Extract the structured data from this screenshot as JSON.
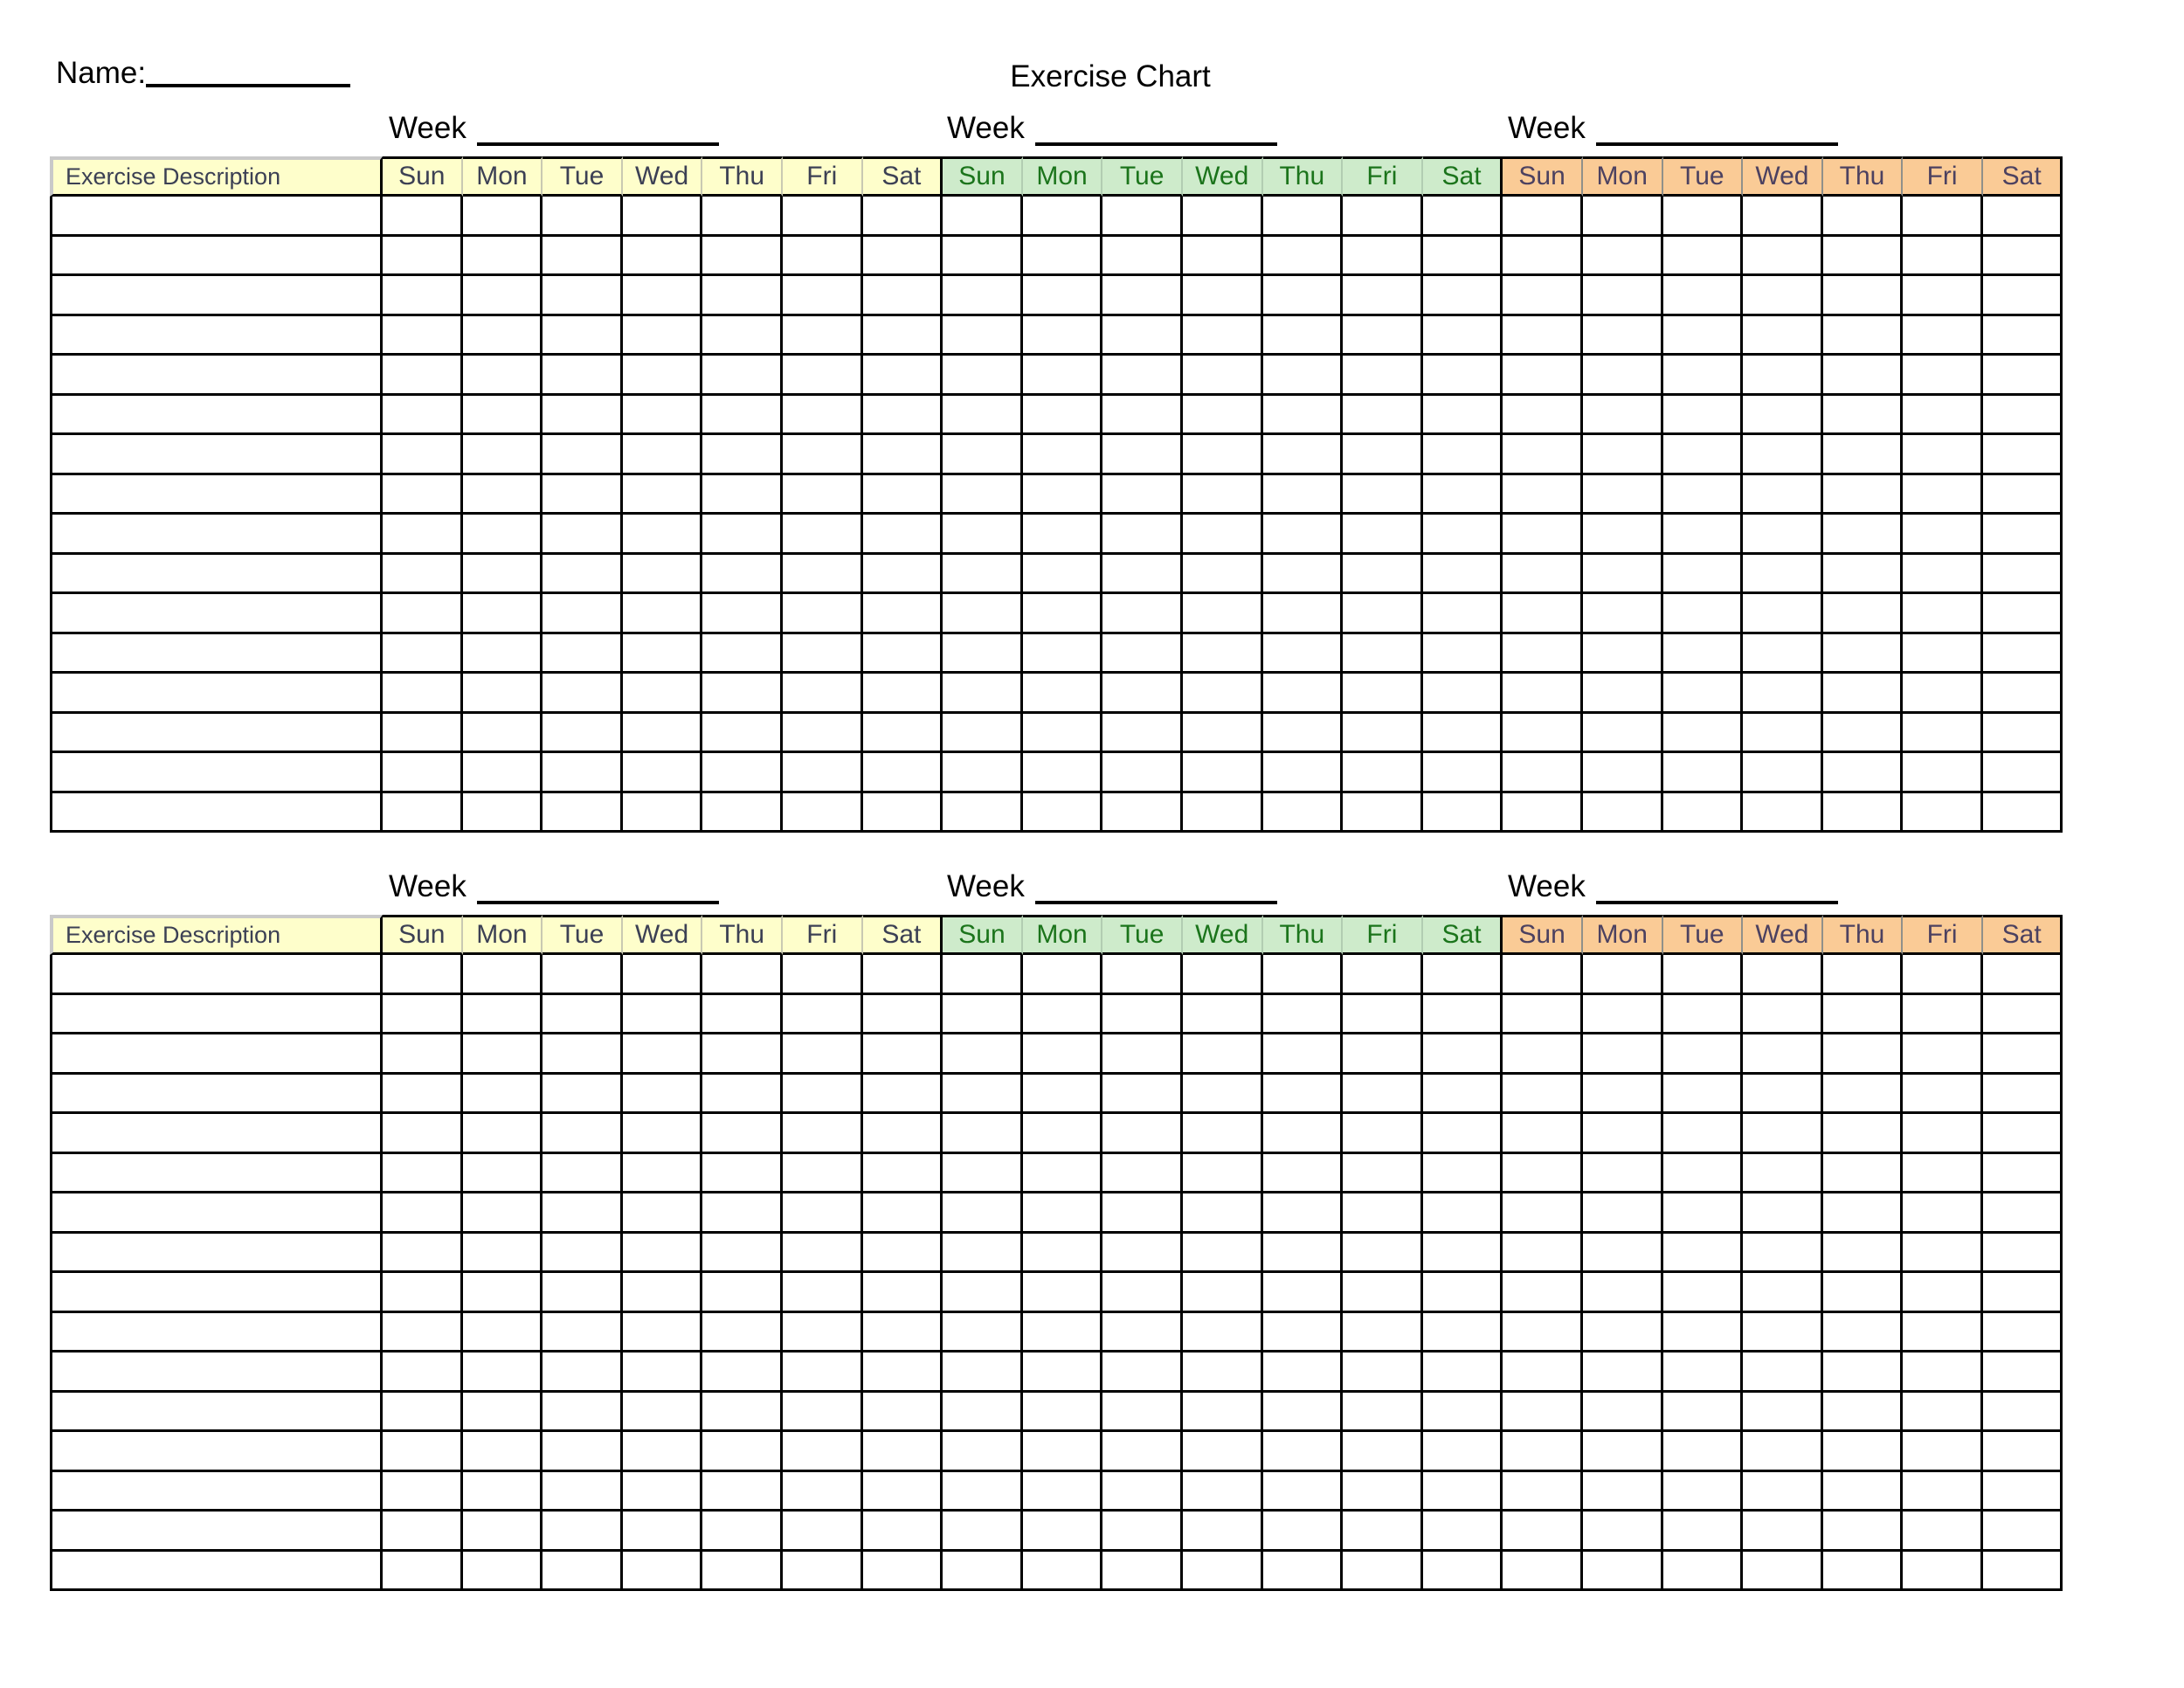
{
  "header": {
    "name_label": "Name:",
    "name_value": "",
    "title": "Exercise Chart"
  },
  "table_template": {
    "description_header": "Exercise Description",
    "description_header_bg": "#FEFECB",
    "description_header_text": "#3C4054",
    "week_label": "Week",
    "days": [
      "Sun",
      "Mon",
      "Tue",
      "Wed",
      "Thu",
      "Fri",
      "Sat"
    ],
    "rows_per_table": 16,
    "sections": [
      {
        "id": "week-1",
        "bg": "#FEFECB",
        "text": "#3C4054",
        "separator": "#C9C9B2"
      },
      {
        "id": "week-2",
        "bg": "#CEEBCB",
        "text": "#1B741B",
        "separator": "#B2CDB2"
      },
      {
        "id": "week-3",
        "bg": "#FACB96",
        "text": "#4C4160",
        "separator": "#90908A"
      }
    ]
  },
  "tables": [
    {
      "label": "upper-table",
      "week_values": [
        "",
        "",
        ""
      ],
      "rows": 16
    },
    {
      "label": "lower-table",
      "week_values": [
        "",
        "",
        ""
      ],
      "rows": 16
    }
  ],
  "colors": {
    "grid_line": "#000000",
    "bevel": "#C9C9C9",
    "page_bg": "#FFFFFF",
    "text": "#000000"
  }
}
